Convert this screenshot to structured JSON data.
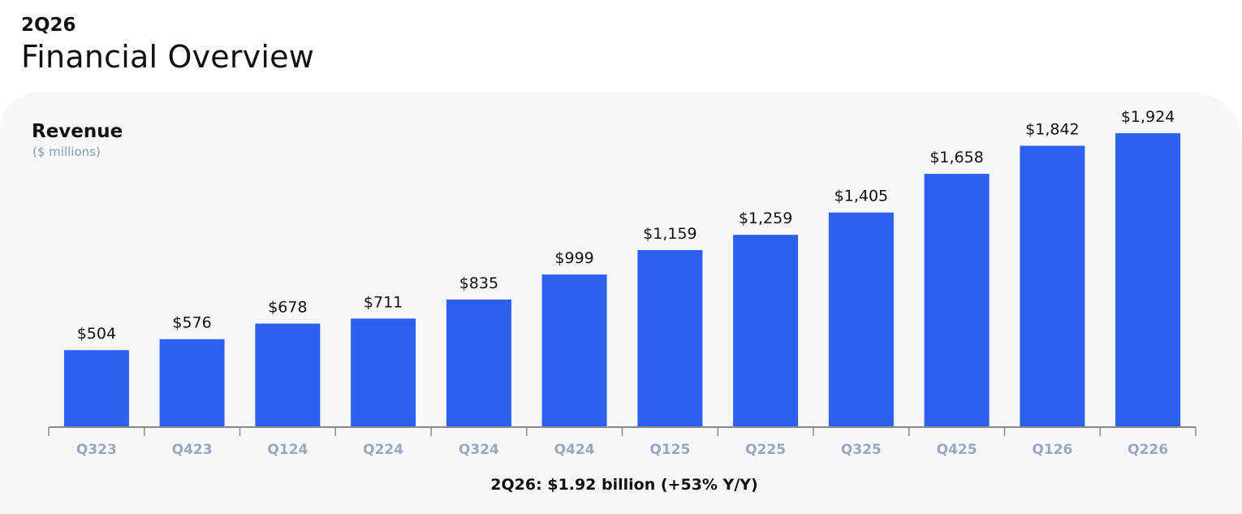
{
  "page": {
    "kicker": "2Q26",
    "headline": "Financial Overview"
  },
  "chart_data": {
    "type": "bar",
    "title": "Revenue",
    "subtitle": "($ millions)",
    "categories": [
      "Q323",
      "Q423",
      "Q124",
      "Q224",
      "Q324",
      "Q424",
      "Q125",
      "Q225",
      "Q325",
      "Q425",
      "Q126",
      "Q226"
    ],
    "values": [
      504,
      576,
      678,
      711,
      835,
      999,
      1159,
      1259,
      1405,
      1658,
      1842,
      1924
    ],
    "data_labels": [
      "$504",
      "$576",
      "$678",
      "$711",
      "$835",
      "$999",
      "$1,159",
      "$1,259",
      "$1,405",
      "$1,658",
      "$1,842",
      "$1,924"
    ],
    "footnote": "2Q26: $1.92 billion (+53% Y/Y)",
    "ylim": [
      0,
      1924
    ],
    "grid": false,
    "bar_color": "#2d5ff0",
    "axis_color": "#8a8a8a",
    "tick_color": "#9aa6c0",
    "subtitle_color": "#8a98b5",
    "panel_color": "#f5f7fa"
  }
}
